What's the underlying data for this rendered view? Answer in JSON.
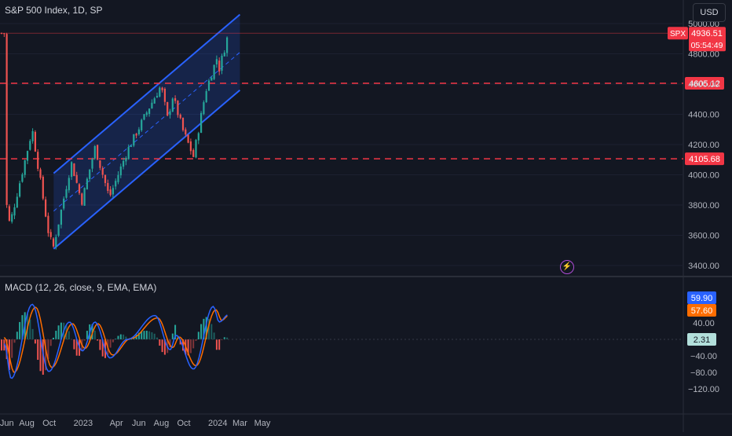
{
  "header": {
    "title": "S&P 500 Index, 1D, SP",
    "currency_button": "USD"
  },
  "price_badge": {
    "symbol": "SPX",
    "price": "4936.51",
    "countdown": "05:54:49"
  },
  "levels": [
    {
      "value": 4605.12,
      "label": "4605.12"
    },
    {
      "value": 4105.68,
      "label": "4105.68"
    }
  ],
  "macd": {
    "title": "MACD (12, 26, close, 9, EMA, EMA)",
    "macd_value": "59.90",
    "signal_value": "57.60",
    "hist_value": "2.31"
  },
  "colors": {
    "background": "#131722",
    "up": "#26a69a",
    "down": "#ef5350",
    "channel": "#2962ff",
    "level": "#f23645",
    "macd_line": "#2962ff",
    "signal_line": "#ff6d00"
  },
  "chart_data": [
    {
      "type": "candlestick",
      "title": "S&P 500 Index, 1D, SP",
      "x_ticks": [
        "Jun",
        "Aug",
        "Oct",
        "2023",
        "Apr",
        "Jun",
        "Aug",
        "Oct",
        "2024",
        "Mar",
        "May"
      ],
      "y_ticks": [
        3400,
        3600,
        3800,
        4000,
        4200,
        4400,
        4600,
        4800,
        5000
      ],
      "ylim": [
        3330,
        5060
      ],
      "series": [
        {
          "date": "2022-06",
          "close": 3900
        },
        {
          "date": "2022-06-16",
          "close": 3670
        },
        {
          "date": "2022-08-16",
          "close": 4300
        },
        {
          "date": "2022-09-30",
          "close": 3600
        },
        {
          "date": "2022-10-12",
          "close": 3520
        },
        {
          "date": "2022-11-30",
          "close": 4080
        },
        {
          "date": "2022-12-28",
          "close": 3820
        },
        {
          "date": "2023-02-02",
          "close": 4180
        },
        {
          "date": "2023-03-13",
          "close": 3850
        },
        {
          "date": "2023-05-01",
          "close": 4160
        },
        {
          "date": "2023-06-30",
          "close": 4450
        },
        {
          "date": "2023-07-31",
          "close": 4590
        },
        {
          "date": "2023-08-18",
          "close": 4370
        },
        {
          "date": "2023-09-01",
          "close": 4520
        },
        {
          "date": "2023-09-29",
          "close": 4290
        },
        {
          "date": "2023-10-27",
          "close": 4120
        },
        {
          "date": "2023-11-30",
          "close": 4560
        },
        {
          "date": "2023-12-29",
          "close": 4770
        },
        {
          "date": "2024-01-05",
          "close": 4700
        },
        {
          "date": "2024-01-30",
          "close": 4936.51
        }
      ],
      "channel": {
        "upper": [
          {
            "date": "2022-10-13",
            "value": 4010
          },
          {
            "date": "2024-03-01",
            "value": 5060
          }
        ],
        "lower": [
          {
            "date": "2022-10-13",
            "value": 3510
          },
          {
            "date": "2024-03-01",
            "value": 4560
          }
        ],
        "middle": [
          {
            "date": "2022-10-13",
            "value": 3760
          },
          {
            "date": "2024-03-01",
            "value": 4810
          }
        ]
      },
      "horizontal_levels": [
        4605.12,
        4105.68
      ]
    },
    {
      "type": "line",
      "title": "MACD (12, 26, close, 9, EMA, EMA)",
      "y_ticks": [
        -120,
        -80,
        -40,
        40
      ],
      "ylim": [
        -125,
        90
      ],
      "series": [
        {
          "name": "MACD",
          "values": [
            {
              "date": "2022-06-01",
              "value": -10
            },
            {
              "date": "2022-06-20",
              "value": -95
            },
            {
              "date": "2022-08-16",
              "value": 85
            },
            {
              "date": "2022-09-30",
              "value": -78
            },
            {
              "date": "2022-11-25",
              "value": 42
            },
            {
              "date": "2022-12-30",
              "value": -28
            },
            {
              "date": "2023-02-02",
              "value": 42
            },
            {
              "date": "2023-03-15",
              "value": -45
            },
            {
              "date": "2023-05-01",
              "value": 0
            },
            {
              "date": "2023-07-15",
              "value": 58
            },
            {
              "date": "2023-08-25",
              "value": -25
            },
            {
              "date": "2023-09-10",
              "value": 10
            },
            {
              "date": "2023-10-27",
              "value": -72
            },
            {
              "date": "2023-12-20",
              "value": 80
            },
            {
              "date": "2024-01-05",
              "value": 42
            },
            {
              "date": "2024-01-30",
              "value": 59.9
            }
          ]
        },
        {
          "name": "Signal",
          "values": [
            {
              "date": "2022-06-01",
              "value": 5
            },
            {
              "date": "2022-06-28",
              "value": -80
            },
            {
              "date": "2022-08-25",
              "value": 78
            },
            {
              "date": "2022-10-08",
              "value": -68
            },
            {
              "date": "2022-12-03",
              "value": 38
            },
            {
              "date": "2023-01-06",
              "value": -22
            },
            {
              "date": "2023-02-10",
              "value": 38
            },
            {
              "date": "2023-03-22",
              "value": -38
            },
            {
              "date": "2023-05-10",
              "value": 2
            },
            {
              "date": "2023-07-22",
              "value": 52
            },
            {
              "date": "2023-09-01",
              "value": -20
            },
            {
              "date": "2023-09-18",
              "value": 6
            },
            {
              "date": "2023-11-03",
              "value": -64
            },
            {
              "date": "2023-12-27",
              "value": 72
            },
            {
              "date": "2024-01-12",
              "value": 46
            },
            {
              "date": "2024-01-30",
              "value": 57.6
            }
          ]
        }
      ]
    }
  ]
}
